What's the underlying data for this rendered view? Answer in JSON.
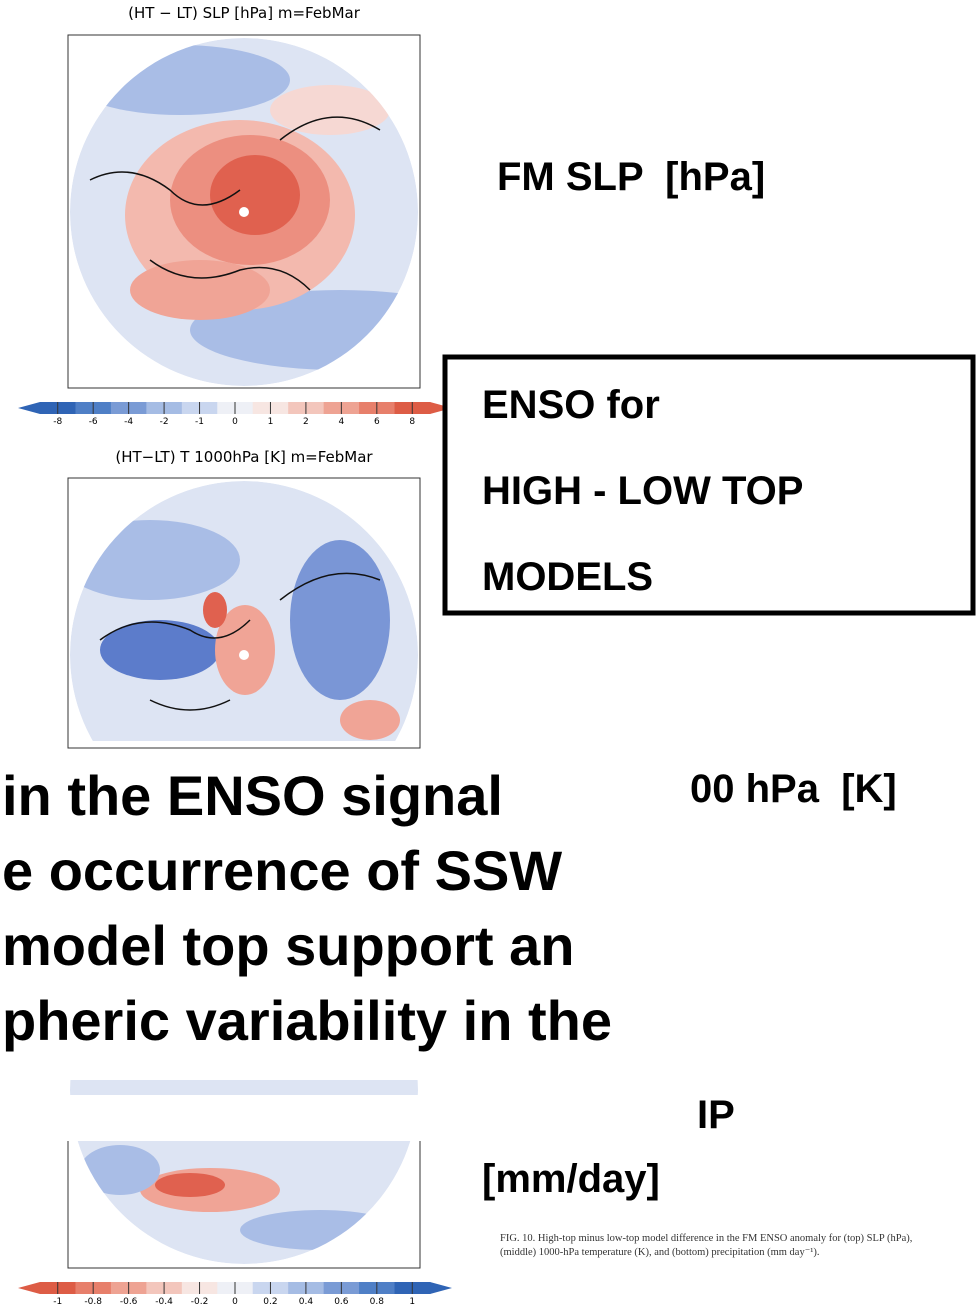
{
  "maps": [
    {
      "title": "(HT − LT) SLP [hPa] m=FebMar",
      "colorbar": [
        "-8",
        "-6",
        "-4",
        "-2",
        "-1",
        "0",
        "1",
        "2",
        "4",
        "6",
        "8"
      ]
    },
    {
      "title": "(HT−LT) T 1000hPa [K] m=FebMar"
    },
    {
      "colorbar": [
        "-1",
        "-0.8",
        "-0.6",
        "-0.4",
        "-0.2",
        "0",
        "0.2",
        "0.4",
        "0.6",
        "0.8",
        "1"
      ]
    }
  ],
  "labels": {
    "slp": "FM SLP  [hPa]",
    "temp": "00 hPa  [K]",
    "precip_1": "IP",
    "precip_2": "[mm/day]"
  },
  "box": [
    "ENSO for",
    "HIGH - LOW TOP",
    "MODELS"
  ],
  "overlay": [
    "in the ENSO signal",
    "e occurrence of SSW",
    "model top support an",
    "pheric variability in the"
  ],
  "caption": "FIG. 10. High-top minus low-top model difference in the FM ENSO anomaly for (top) SLP (hPa), (middle) 1000-hPa temperature (K), and (bottom) precipitation (mm day⁻¹)."
}
